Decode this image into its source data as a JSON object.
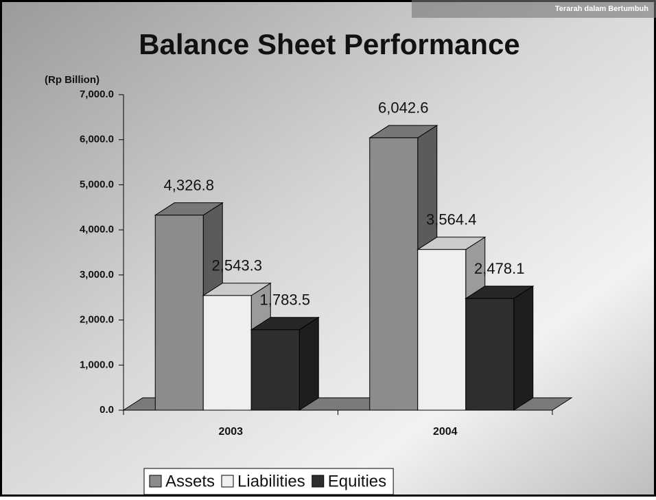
{
  "header": {
    "logo_text": "Terarah dalam Bertumbuh"
  },
  "chart_data": {
    "type": "bar3d",
    "title": "Balance Sheet Performance",
    "y_label": "(Rp Billion)",
    "categories": [
      "2003",
      "2004"
    ],
    "series": [
      {
        "name": "Assets",
        "color": "#8c8c8c",
        "values": [
          4326.8,
          6042.6
        ],
        "value_labels": [
          "4,326.8",
          "6,042.6"
        ]
      },
      {
        "name": "Liabilities",
        "color": "#efefef",
        "values": [
          2543.3,
          3564.4
        ],
        "value_labels": [
          "2,543.3",
          "3,564.4"
        ]
      },
      {
        "name": "Equities",
        "color": "#2e2e2e",
        "values": [
          1783.5,
          2478.1
        ],
        "value_labels": [
          "1,783.5",
          "2,478.1"
        ]
      }
    ],
    "ylim": [
      0,
      7000
    ],
    "yticks": [
      {
        "value": 0,
        "label": "0.0"
      },
      {
        "value": 1000,
        "label": "1,000.0"
      },
      {
        "value": 2000,
        "label": "2,000.0"
      },
      {
        "value": 3000,
        "label": "3,000.0"
      },
      {
        "value": 4000,
        "label": "4,000.0"
      },
      {
        "value": 5000,
        "label": "5,000.0"
      },
      {
        "value": 6000,
        "label": "6,000.0"
      },
      {
        "value": 7000,
        "label": "7,000.0"
      }
    ],
    "legend": "bottom"
  }
}
